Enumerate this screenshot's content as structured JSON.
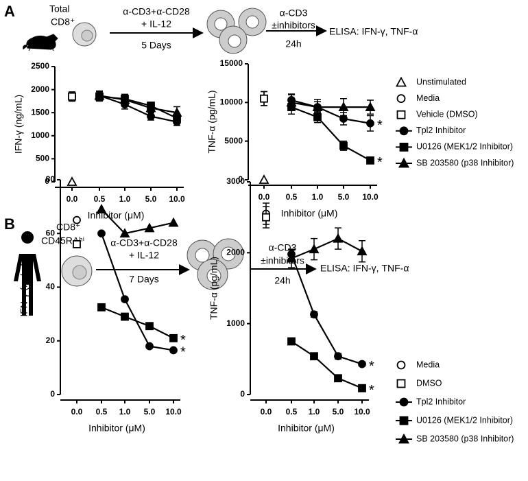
{
  "panels": [
    {
      "letter": "A",
      "cell_label": [
        "Total",
        "CD8⁺"
      ],
      "stimulation": "α-CD3+α-CD28",
      "cytokine": "+ IL-12",
      "duration": "5 Days",
      "restim": "α-CD3",
      "inhibitors": "±inhibitors",
      "restim_time": "24h",
      "readout": "ELISA: IFN-γ, TNF-α"
    },
    {
      "letter": "B",
      "cell_label": [
        "CD8⁺",
        "CD45RAʰⁱ"
      ],
      "stimulation": "α-CD3+α-CD28",
      "cytokine": "+ IL-12",
      "duration": "7 Days",
      "restim": "α-CD3",
      "inhibitors": "±inhibitors",
      "restim_time": "24h",
      "readout": "ELISA: IFN-γ, TNF-α"
    }
  ],
  "chart_data": [
    {
      "type": "line",
      "y_label": "IFN-γ (ng/mL)",
      "x_label": "Inhibitor (μM)",
      "categories": [
        "0.0",
        "0.5",
        "1.0",
        "5.0",
        "10.0"
      ],
      "ylim": [
        0,
        2500
      ],
      "yticks": [
        0,
        500,
        1000,
        1500,
        2000,
        2500
      ],
      "legend": false,
      "series": [
        {
          "name": "Unstimulated",
          "color": "#000",
          "marker": "open-triangle",
          "values": [
            0,
            null,
            null,
            null,
            null
          ]
        },
        {
          "name": "Media",
          "color": "#000",
          "marker": "open-circle",
          "values": [
            1850,
            null,
            null,
            null,
            null
          ],
          "errors": [
            100,
            null,
            null,
            null,
            null
          ]
        },
        {
          "name": "Vehicle (DMSO)",
          "color": "#000",
          "marker": "open-square",
          "values": [
            1850,
            null,
            null,
            null,
            null
          ],
          "errors": [
            100,
            null,
            null,
            null,
            null
          ]
        },
        {
          "name": "Tpl2 Inhibitor",
          "color": "#000",
          "marker": "circle",
          "values": [
            null,
            1870,
            1680,
            1420,
            1300
          ],
          "errors": [
            null,
            100,
            100,
            80,
            80
          ]
        },
        {
          "name": "U0126 (MEK1/2 Inhibitor)",
          "color": "#000",
          "marker": "square",
          "values": [
            null,
            1850,
            1800,
            1650,
            1380
          ],
          "errors": [
            null,
            100,
            100,
            80,
            80
          ]
        },
        {
          "name": "SB 203580 (p38 Inhibitor)",
          "color": "#000",
          "marker": "triangle",
          "values": [
            null,
            1870,
            1780,
            1600,
            1500
          ],
          "errors": [
            null,
            100,
            100,
            80,
            130
          ]
        }
      ]
    },
    {
      "type": "line",
      "y_label": "TNF-α (pg/mL)",
      "x_label": "Inhibitor (μM)",
      "categories": [
        "0.0",
        "0.5",
        "1.0",
        "5.0",
        "10.0"
      ],
      "ylim": [
        0,
        15000
      ],
      "yticks": [
        0,
        5000,
        10000,
        15000
      ],
      "legend": true,
      "series": [
        {
          "name": "Unstimulated",
          "color": "#000",
          "marker": "open-triangle",
          "values": [
            0,
            null,
            null,
            null,
            null
          ]
        },
        {
          "name": "Media",
          "color": "#000",
          "marker": "open-circle",
          "values": [
            10500,
            null,
            null,
            null,
            null
          ],
          "errors": [
            900,
            null,
            null,
            null,
            null
          ]
        },
        {
          "name": "Vehicle (DMSO)",
          "color": "#000",
          "marker": "open-square",
          "values": [
            10500,
            null,
            null,
            null,
            null
          ],
          "errors": [
            900,
            null,
            null,
            null,
            null
          ]
        },
        {
          "name": "Tpl2 Inhibitor",
          "color": "#000",
          "marker": "circle",
          "values": [
            null,
            10300,
            9400,
            7900,
            7300
          ],
          "errors": [
            null,
            800,
            700,
            800,
            1000
          ],
          "significance": "*"
        },
        {
          "name": "U0126 (MEK1/2 Inhibitor)",
          "color": "#000",
          "marker": "square",
          "values": [
            null,
            9400,
            8100,
            4400,
            2500
          ],
          "errors": [
            null,
            900,
            700,
            600,
            400
          ],
          "significance": "*"
        },
        {
          "name": "SB 203580 (p38 Inhibitor)",
          "color": "#000",
          "marker": "triangle",
          "values": [
            null,
            10000,
            9400,
            9400,
            9400
          ],
          "errors": [
            null,
            1000,
            1000,
            1100,
            900
          ]
        }
      ]
    },
    {
      "type": "line",
      "y_label": "IFN-γ (ng/mL)",
      "x_label": "Inhibitor (μM)",
      "categories": [
        "0.0",
        "0.5",
        "1.0",
        "5.0",
        "10.0"
      ],
      "ylim": [
        0,
        80
      ],
      "yticks": [
        0,
        20,
        40,
        60,
        80
      ],
      "legend": false,
      "series": [
        {
          "name": "Media",
          "color": "#000",
          "marker": "open-circle",
          "values": [
            65,
            null,
            null,
            null,
            null
          ]
        },
        {
          "name": "DMSO",
          "color": "#000",
          "marker": "open-square",
          "values": [
            56,
            null,
            null,
            null,
            null
          ]
        },
        {
          "name": "Tpl2 Inhibitor",
          "color": "#000",
          "marker": "circle",
          "values": [
            null,
            60,
            35.5,
            18,
            16.5
          ],
          "significance": "*"
        },
        {
          "name": "U0126 (MEK1/2 Inhibitor)",
          "color": "#000",
          "marker": "square",
          "values": [
            null,
            32.5,
            29,
            25.5,
            21
          ],
          "significance": "*"
        },
        {
          "name": "SB 203580 (p38 Inhibitor)",
          "color": "#000",
          "marker": "triangle",
          "values": [
            null,
            69,
            60,
            62,
            64
          ]
        }
      ]
    },
    {
      "type": "line",
      "y_label": "TNF-α (pg/mL)",
      "x_label": "Inhibitor (μM)",
      "categories": [
        "0.0",
        "0.5",
        "1.0",
        "5.0",
        "10.0"
      ],
      "ylim": [
        0,
        3000
      ],
      "yticks": [
        0,
        1000,
        2000,
        3000
      ],
      "legend": true,
      "series": [
        {
          "name": "Media",
          "color": "#000",
          "marker": "open-circle",
          "values": [
            2550,
            null,
            null,
            null,
            null
          ],
          "errors": [
            150,
            null,
            null,
            null,
            null
          ]
        },
        {
          "name": "DMSO",
          "color": "#000",
          "marker": "open-square",
          "values": [
            2500,
            null,
            null,
            null,
            null
          ],
          "errors": [
            150,
            null,
            null,
            null,
            null
          ]
        },
        {
          "name": "Tpl2 Inhibitor",
          "color": "#000",
          "marker": "circle",
          "values": [
            null,
            1980,
            1130,
            540,
            430
          ],
          "errors": [
            null,
            60,
            40,
            40,
            30
          ],
          "significance": "*"
        },
        {
          "name": "U0126 (MEK1/2 Inhibitor)",
          "color": "#000",
          "marker": "square",
          "values": [
            null,
            750,
            540,
            230,
            90
          ],
          "errors": [
            null,
            40,
            40,
            30,
            20
          ],
          "significance": "*"
        },
        {
          "name": "SB 203580 (p38 Inhibitor)",
          "color": "#000",
          "marker": "triangle",
          "values": [
            null,
            1920,
            2050,
            2200,
            2020
          ],
          "errors": [
            null,
            130,
            150,
            150,
            150
          ]
        }
      ]
    }
  ]
}
